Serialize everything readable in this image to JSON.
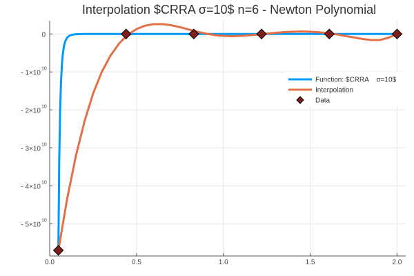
{
  "chart_data": {
    "type": "line",
    "title": "Interpolation $CRRA    σ=10$ n=6 - Newton Polynomial",
    "xlabel": "",
    "ylabel": "",
    "xlim": [
      0.0,
      2.05
    ],
    "ylim": [
      -58500000000.0,
      3500000000.0
    ],
    "grid": true,
    "legend_position": "right",
    "x_ticks": [
      {
        "value": 0.0,
        "label": "0.0"
      },
      {
        "value": 0.5,
        "label": "0.5"
      },
      {
        "value": 1.0,
        "label": "1.0"
      },
      {
        "value": 1.5,
        "label": "1.5"
      },
      {
        "value": 2.0,
        "label": "2.0"
      }
    ],
    "y_ticks": [
      {
        "value": 0,
        "label": "0",
        "exp": ""
      },
      {
        "value": -10000000000.0,
        "label": "- 1×10",
        "exp": "10"
      },
      {
        "value": -20000000000.0,
        "label": "- 2×10",
        "exp": "10"
      },
      {
        "value": -30000000000.0,
        "label": "- 3×10",
        "exp": "10"
      },
      {
        "value": -40000000000.0,
        "label": "- 4×10",
        "exp": "10"
      },
      {
        "value": -50000000000.0,
        "label": "- 5×10",
        "exp": "10"
      }
    ],
    "series": [
      {
        "name": "Function: $CRRA    σ=10$",
        "color": "#009af9",
        "kind": "line",
        "x": [
          0.05,
          0.055,
          0.06,
          0.065,
          0.07,
          0.075,
          0.08,
          0.085,
          0.09,
          0.1,
          0.11,
          0.125,
          0.15,
          0.2,
          0.3,
          0.5,
          1.0,
          1.5,
          2.0
        ],
        "y": [
          -57000000000.0,
          -33500000000.0,
          -20500000000.0,
          -12900000000.0,
          -8400000000.0,
          -5600000000.0,
          -3800000000.0,
          -2650000000.0,
          -1900000000.0,
          -1000000000.0,
          -550000000.0,
          -240000000.0,
          -60000000.0,
          -10000000.0,
          -500000.0,
          0,
          0,
          0,
          0
        ]
      },
      {
        "name": "Interpolation",
        "color": "#e26f46",
        "kind": "line",
        "x": [
          0.05,
          0.1,
          0.15,
          0.2,
          0.25,
          0.3,
          0.35,
          0.4,
          0.45,
          0.5,
          0.55,
          0.6,
          0.65,
          0.7,
          0.75,
          0.8,
          0.85,
          0.9,
          0.95,
          1.0,
          1.05,
          1.1,
          1.15,
          1.2,
          1.25,
          1.3,
          1.35,
          1.4,
          1.45,
          1.5,
          1.55,
          1.6,
          1.65,
          1.7,
          1.75,
          1.8,
          1.85,
          1.9,
          1.95,
          2.0
        ],
        "y": [
          -57000000000.0,
          -43600000000.0,
          -32300000000.0,
          -23100000000.0,
          -15700000000.0,
          -10000000000.0,
          -5700000000.0,
          -2500000000.0,
          -200000000.0,
          1300000000.0,
          2200000000.0,
          2600000000.0,
          2600000000.0,
          2300000000.0,
          1800000000.0,
          1200000000.0,
          600000000.0,
          100000000.0,
          -300000000.0,
          -500000000.0,
          -600000000.0,
          -500000000.0,
          -350000000.0,
          -150000000.0,
          100000000.0,
          300000000.0,
          500000000.0,
          600000000.0,
          650000000.0,
          600000000.0,
          450000000.0,
          200000000.0,
          -100000000.0,
          -500000000.0,
          -900000000.0,
          -1300000000.0,
          -1600000000.0,
          -1600000000.0,
          -1000000000.0,
          0
        ]
      },
      {
        "name": "Data",
        "color": "#801e1e",
        "kind": "scatter",
        "marker": "diamond",
        "x": [
          0.05,
          0.44,
          0.83,
          1.22,
          1.61,
          2.0
        ],
        "y": [
          -57000000000.0,
          0,
          0,
          0,
          0,
          0
        ]
      }
    ]
  }
}
